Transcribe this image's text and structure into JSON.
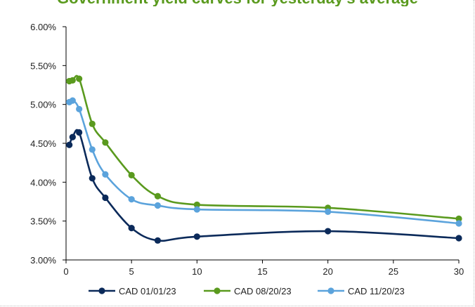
{
  "chart_data": {
    "type": "line",
    "title": "",
    "xlabel": "",
    "ylabel": "",
    "xlim": [
      0,
      30
    ],
    "ylim": [
      3.0,
      6.0
    ],
    "x_ticks": [
      "0",
      "5",
      "10",
      "15",
      "20",
      "25",
      "30"
    ],
    "y_ticks": [
      "3.00%",
      "3.50%",
      "4.00%",
      "4.50%",
      "5.00%",
      "5.50%",
      "6.00%"
    ],
    "grid": false,
    "legend": "bottom",
    "series": [
      {
        "name": "CAD 01/01/23",
        "color": "#0b2a5a",
        "x": [
          0.25,
          0.5,
          1,
          2,
          3,
          5,
          7,
          10,
          20,
          30
        ],
        "values": [
          4.48,
          4.58,
          4.64,
          4.05,
          3.8,
          3.41,
          3.25,
          3.3,
          3.37,
          3.28
        ]
      },
      {
        "name": "CAD 08/20/23",
        "color": "#5a9a1e",
        "x": [
          0.25,
          0.5,
          1,
          2,
          3,
          5,
          7,
          10,
          20,
          30
        ],
        "values": [
          5.3,
          5.31,
          5.33,
          4.75,
          4.51,
          4.09,
          3.82,
          3.71,
          3.67,
          3.53
        ]
      },
      {
        "name": "CAD 11/20/23",
        "color": "#5ba3dc",
        "x": [
          0.25,
          0.5,
          1,
          2,
          3,
          5,
          7,
          10,
          20,
          30
        ],
        "values": [
          5.03,
          5.05,
          4.94,
          4.42,
          4.1,
          3.78,
          3.7,
          3.65,
          3.62,
          3.47
        ]
      }
    ]
  },
  "header": {
    "title_fragment": "Government yield curves for yesterday's average"
  }
}
